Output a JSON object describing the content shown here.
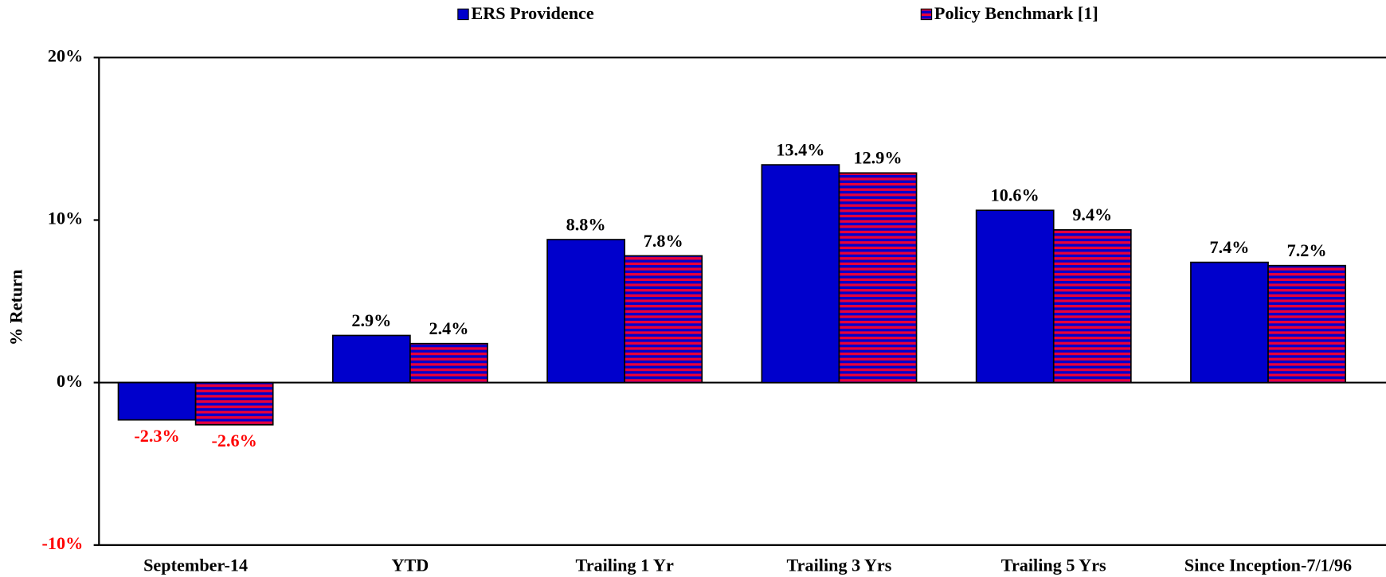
{
  "chart_data": {
    "type": "bar",
    "y_label": "% Return",
    "categories": [
      "September-14",
      "YTD",
      "Trailing 1 Yr",
      "Trailing 3 Yrs",
      "Trailing 5 Yrs",
      "Since Inception-7/1/96"
    ],
    "series": [
      {
        "name": "ERS Providence",
        "color": "#0000cc",
        "values": [
          -2.3,
          2.9,
          8.8,
          13.4,
          10.6,
          7.4
        ],
        "value_labels": [
          "-2.3%",
          "2.9%",
          "8.8%",
          "13.4%",
          "10.6%",
          "7.4%"
        ]
      },
      {
        "name": "Policy Benchmark [1]",
        "color": "#e8003a",
        "hatch": "horizontal",
        "values": [
          -2.6,
          2.4,
          7.8,
          12.9,
          9.4,
          7.2
        ],
        "value_labels": [
          "-2.6%",
          "2.4%",
          "7.8%",
          "12.9%",
          "9.4%",
          "7.2%"
        ]
      }
    ],
    "negative_color": "#ff0000",
    "ylim": [
      -10,
      20
    ],
    "yticks": [
      {
        "value": -10,
        "label": "-10%"
      },
      {
        "value": 0,
        "label": "0%"
      },
      {
        "value": 10,
        "label": "10%"
      },
      {
        "value": 20,
        "label": "20%"
      }
    ],
    "legend": "top"
  }
}
